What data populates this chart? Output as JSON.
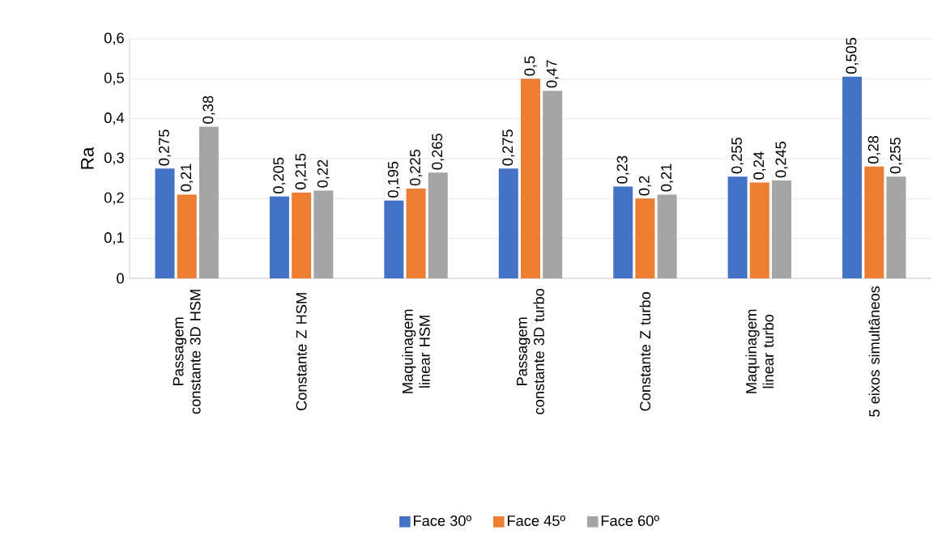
{
  "chart_data": {
    "type": "bar",
    "ylabel": "Ra",
    "categories": [
      "Passagem constante 3D HSM",
      "Constante Z HSM",
      "Maquinagem linear HSM",
      "Passagem constante 3D turbo",
      "Constante Z turbo",
      "Maquinagem linear turbo",
      "5 eixos simultâneos"
    ],
    "series": [
      {
        "name": "Face 30º",
        "color": "#4472c4",
        "values": [
          0.275,
          0.205,
          0.195,
          0.275,
          0.23,
          0.255,
          0.505
        ],
        "value_labels": [
          "0,275",
          "0,205",
          "0,195",
          "0,275",
          "0,23",
          "0,255",
          "0,505"
        ]
      },
      {
        "name": "Face 45º",
        "color": "#ed7d31",
        "values": [
          0.21,
          0.215,
          0.225,
          0.5,
          0.2,
          0.24,
          0.28
        ],
        "value_labels": [
          "0,21",
          "0,215",
          "0,225",
          "0,5",
          "0,2",
          "0,24",
          "0,28"
        ]
      },
      {
        "name": "Face 60º",
        "color": "#a5a5a5",
        "values": [
          0.38,
          0.22,
          0.265,
          0.47,
          0.21,
          0.245,
          0.255
        ],
        "value_labels": [
          "0,38",
          "0,22",
          "0,265",
          "0,47",
          "0,21",
          "0,245",
          "0,255"
        ]
      }
    ],
    "ylim": [
      0,
      0.6
    ],
    "yticks": [
      0,
      {
        "value": 0.1,
        "label": "0,1"
      },
      {
        "value": 0.2,
        "label": "0,2"
      },
      {
        "value": 0.3,
        "label": "0,3"
      },
      {
        "value": 0.4,
        "label": "0,4"
      },
      {
        "value": 0.5,
        "label": "0,5"
      },
      {
        "value": 0.6,
        "label": "0,6"
      }
    ],
    "grid": "y",
    "legend": "bottom"
  }
}
